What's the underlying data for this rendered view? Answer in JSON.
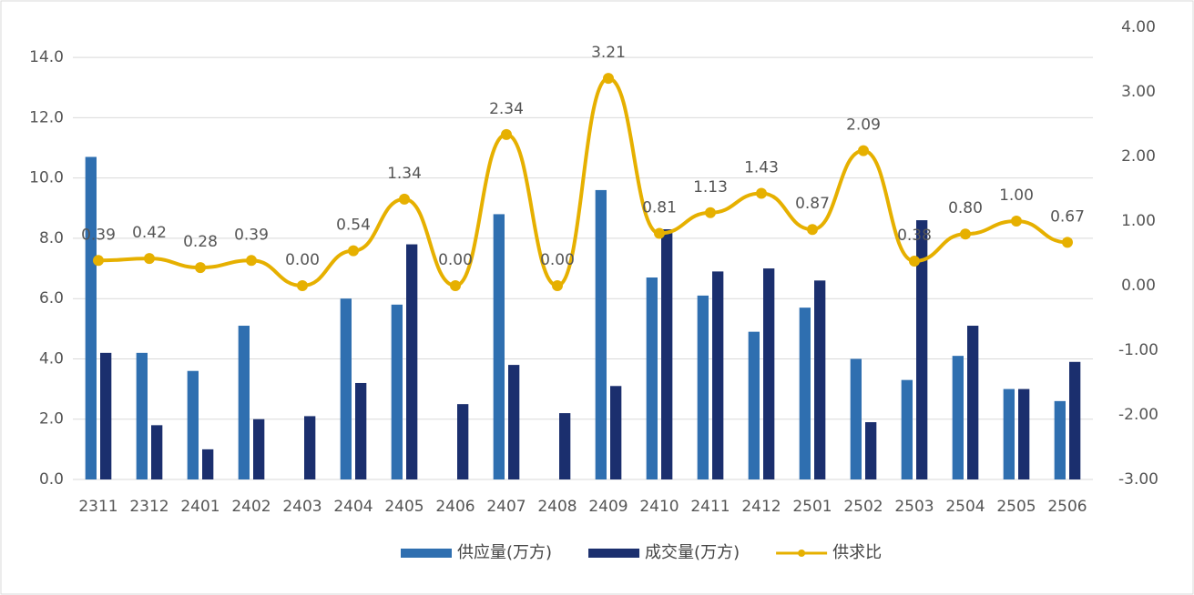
{
  "chart_data": {
    "type": "bar-line",
    "categories": [
      "2311",
      "2312",
      "2401",
      "2402",
      "2403",
      "2404",
      "2405",
      "2406",
      "2407",
      "2408",
      "2409",
      "2410",
      "2411",
      "2412",
      "2501",
      "2502",
      "2503",
      "2504",
      "2505",
      "2506"
    ],
    "series": [
      {
        "name": "供应量(万方)",
        "type": "bar",
        "color": "#2f6fb0",
        "values": [
          10.7,
          4.2,
          3.6,
          5.1,
          0.0,
          6.0,
          5.8,
          0.0,
          8.8,
          0.0,
          9.6,
          6.7,
          6.1,
          4.9,
          5.7,
          4.0,
          3.3,
          4.1,
          3.0,
          2.6
        ]
      },
      {
        "name": "成交量(万方)",
        "type": "bar",
        "color": "#1b2f6e",
        "values": [
          4.2,
          1.8,
          1.0,
          2.0,
          2.1,
          3.2,
          7.8,
          2.5,
          3.8,
          2.2,
          3.1,
          8.3,
          6.9,
          7.0,
          6.6,
          1.9,
          8.6,
          5.1,
          3.0,
          3.9
        ]
      },
      {
        "name": "供求比",
        "type": "line",
        "axis": "y2",
        "color": "#e6b000",
        "values": [
          0.39,
          0.42,
          0.28,
          0.39,
          0.0,
          0.54,
          1.34,
          0.0,
          2.34,
          0.0,
          3.21,
          0.81,
          1.13,
          1.43,
          0.87,
          2.09,
          0.38,
          0.8,
          1.0,
          0.67
        ],
        "value_labels": [
          "0.39",
          "0.42",
          "0.28",
          "0.39",
          "0.00",
          "0.54",
          "1.34",
          "0.00",
          "2.34",
          "0.00",
          "3.21",
          "0.81",
          "1.13",
          "1.43",
          "0.87",
          "2.09",
          "0.38",
          "0.80",
          "1.00",
          "0.67"
        ]
      }
    ],
    "ylim": [
      0,
      15
    ],
    "yticks": [
      {
        "value": 0,
        "label": "0.0"
      },
      {
        "value": 2,
        "label": "2.0"
      },
      {
        "value": 4,
        "label": "4.0"
      },
      {
        "value": 6,
        "label": "6.0"
      },
      {
        "value": 8,
        "label": "8.0"
      },
      {
        "value": 10,
        "label": "10.0"
      },
      {
        "value": 12,
        "label": "12.0"
      },
      {
        "value": 14,
        "label": "14.0"
      }
    ],
    "y2lim": [
      -3,
      4
    ],
    "y2ticks": [
      {
        "value": -3,
        "label": "-3.00"
      },
      {
        "value": -2,
        "label": "-2.00"
      },
      {
        "value": -1,
        "label": "-1.00"
      },
      {
        "value": 0,
        "label": "0.00"
      },
      {
        "value": 1,
        "label": "1.00"
      },
      {
        "value": 2,
        "label": "2.00"
      },
      {
        "value": 3,
        "label": "3.00"
      },
      {
        "value": 4,
        "label": "4.00"
      }
    ],
    "grid": true
  }
}
